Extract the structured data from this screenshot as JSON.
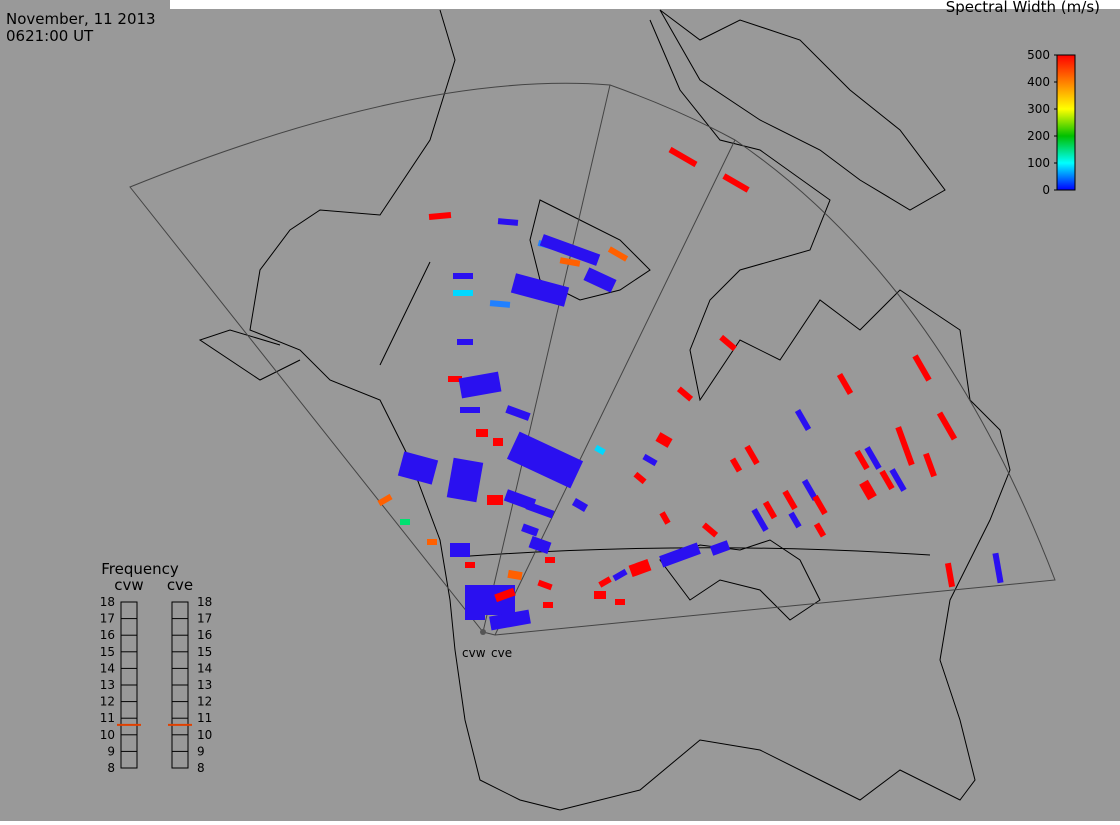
{
  "header": {
    "date": "November, 11 2013",
    "time": "0621:00 UT"
  },
  "colorbar": {
    "title": "Spectral Width (m/s)",
    "range": [
      0,
      500
    ],
    "ticks": [
      0,
      100,
      200,
      300,
      400,
      500
    ]
  },
  "frequency": {
    "title": "Frequency",
    "range": [
      8,
      18
    ],
    "ticks": [
      8,
      9,
      10,
      11,
      12,
      13,
      14,
      15,
      16,
      17,
      18
    ],
    "radars": [
      {
        "name": "cvw",
        "value": 10.6
      },
      {
        "name": "cve",
        "value": 10.6
      }
    ]
  },
  "radar_labels": [
    "cvw",
    "cve"
  ]
}
